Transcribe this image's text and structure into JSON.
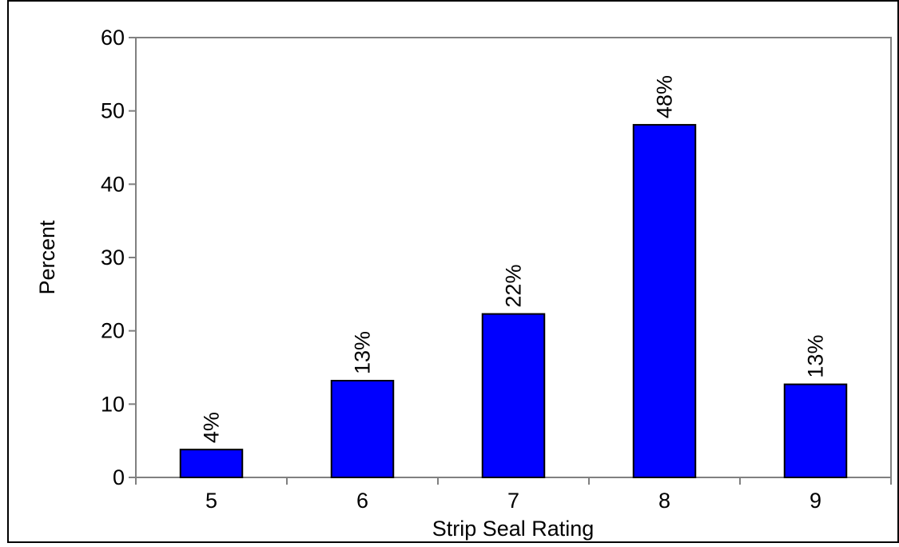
{
  "chart_data": {
    "type": "bar",
    "categories": [
      "5",
      "6",
      "7",
      "8",
      "9"
    ],
    "values": [
      3.8,
      13.2,
      22.3,
      48.1,
      12.7
    ],
    "data_labels": [
      "4%",
      "13%",
      "22%",
      "48%",
      "13%"
    ],
    "title": "",
    "xlabel": "Strip Seal Rating",
    "ylabel": "Percent",
    "ylim": [
      0,
      60
    ],
    "yticks": [
      0,
      10,
      20,
      30,
      40,
      50,
      60
    ],
    "ytick_labels": [
      "0",
      "10",
      "20",
      "30",
      "40",
      "50",
      "60"
    ],
    "grid": false,
    "legend": "none",
    "bar_color": "#0000FF",
    "bar_edge_color": "#000000",
    "axis_color": "#808080"
  }
}
